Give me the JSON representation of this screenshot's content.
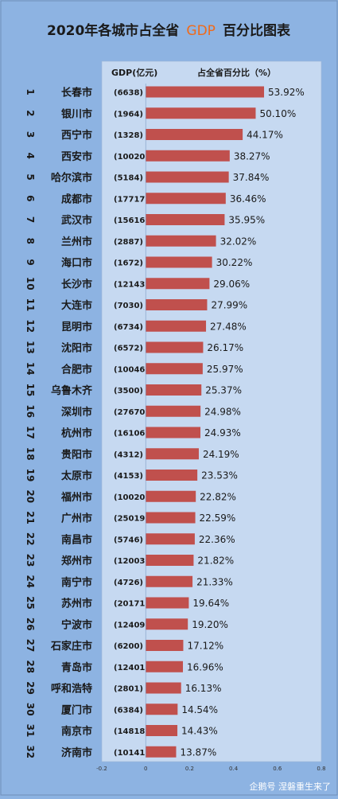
{
  "chart_data": {
    "type": "bar",
    "title_parts": [
      "2020年各城市占全省",
      "GDP",
      "百分比图表"
    ],
    "gdp_header": "GDP(亿元)",
    "pct_header": "占全省百分比（%）",
    "xlim": [
      -0.2,
      0.8
    ],
    "xticks": [
      "-0.2",
      "0",
      "0.2",
      "0.4",
      "0.6",
      "0.8"
    ],
    "bar_color": "#c0504d",
    "accent_color": "#f06a1a",
    "rows": [
      {
        "rank": "1",
        "city": "长春市",
        "gdp": "(6638)",
        "value": 0.5392,
        "label": "53.92%"
      },
      {
        "rank": "2",
        "city": "银川市",
        "gdp": "(1964)",
        "value": 0.501,
        "label": "50.10%"
      },
      {
        "rank": "3",
        "city": "西宁市",
        "gdp": "(1328)",
        "value": 0.4417,
        "label": "44.17%"
      },
      {
        "rank": "4",
        "city": "西安市",
        "gdp": "(10020)",
        "value": 0.3827,
        "label": "38.27%"
      },
      {
        "rank": "5",
        "city": "哈尔滨市",
        "gdp": "(5184)",
        "value": 0.3784,
        "label": "37.84%"
      },
      {
        "rank": "6",
        "city": "成都市",
        "gdp": "(17717)",
        "value": 0.3646,
        "label": "36.46%"
      },
      {
        "rank": "7",
        "city": "武汉市",
        "gdp": "(15616)",
        "value": 0.3595,
        "label": "35.95%"
      },
      {
        "rank": "8",
        "city": "兰州市",
        "gdp": "(2887)",
        "value": 0.3202,
        "label": "32.02%"
      },
      {
        "rank": "9",
        "city": "海口市",
        "gdp": "(1672)",
        "value": 0.3022,
        "label": "30.22%"
      },
      {
        "rank": "10",
        "city": "长沙市",
        "gdp": "(12143)",
        "value": 0.2906,
        "label": "29.06%"
      },
      {
        "rank": "11",
        "city": "大连市",
        "gdp": "(7030)",
        "value": 0.2799,
        "label": "27.99%"
      },
      {
        "rank": "12",
        "city": "昆明市",
        "gdp": "(6734)",
        "value": 0.2748,
        "label": "27.48%"
      },
      {
        "rank": "13",
        "city": "沈阳市",
        "gdp": "(6572)",
        "value": 0.2617,
        "label": "26.17%"
      },
      {
        "rank": "14",
        "city": "合肥市",
        "gdp": "(10046)",
        "value": 0.2597,
        "label": "25.97%"
      },
      {
        "rank": "15",
        "city": "乌鲁木齐",
        "gdp": "(3500)",
        "value": 0.2537,
        "label": "25.37%"
      },
      {
        "rank": "16",
        "city": "深圳市",
        "gdp": "(27670)",
        "value": 0.2498,
        "label": "24.98%"
      },
      {
        "rank": "17",
        "city": "杭州市",
        "gdp": "(16106)",
        "value": 0.2493,
        "label": "24.93%"
      },
      {
        "rank": "18",
        "city": "贵阳市",
        "gdp": "(4312)",
        "value": 0.2419,
        "label": "24.19%"
      },
      {
        "rank": "19",
        "city": "太原市",
        "gdp": "(4153)",
        "value": 0.2353,
        "label": "23.53%"
      },
      {
        "rank": "20",
        "city": "福州市",
        "gdp": "(10020)",
        "value": 0.2282,
        "label": "22.82%"
      },
      {
        "rank": "21",
        "city": "广州市",
        "gdp": "(25019)",
        "value": 0.2259,
        "label": "22.59%"
      },
      {
        "rank": "22",
        "city": "南昌市",
        "gdp": "(5746)",
        "value": 0.2236,
        "label": "22.36%"
      },
      {
        "rank": "23",
        "city": "郑州市",
        "gdp": "(12003)",
        "value": 0.2182,
        "label": "21.82%"
      },
      {
        "rank": "24",
        "city": "南宁市",
        "gdp": "(4726)",
        "value": 0.2133,
        "label": "21.33%"
      },
      {
        "rank": "25",
        "city": "苏州市",
        "gdp": "(20171)",
        "value": 0.1964,
        "label": "19.64%"
      },
      {
        "rank": "26",
        "city": "宁波市",
        "gdp": "(12409)",
        "value": 0.192,
        "label": "19.20%"
      },
      {
        "rank": "27",
        "city": "石家庄市",
        "gdp": "(6200)",
        "value": 0.1712,
        "label": "17.12%"
      },
      {
        "rank": "28",
        "city": "青岛市",
        "gdp": "(12401)",
        "value": 0.1696,
        "label": "16.96%"
      },
      {
        "rank": "29",
        "city": "呼和浩特",
        "gdp": "(2801)",
        "value": 0.1613,
        "label": "16.13%"
      },
      {
        "rank": "30",
        "city": "厦门市",
        "gdp": "(6384)",
        "value": 0.1454,
        "label": "14.54%"
      },
      {
        "rank": "31",
        "city": "南京市",
        "gdp": "(14818)",
        "value": 0.1443,
        "label": "14.43%"
      },
      {
        "rank": "32",
        "city": "济南市",
        "gdp": "(10141)",
        "value": 0.1387,
        "label": "13.87%"
      }
    ]
  },
  "watermark": "企鹅号 涅磐重生来了"
}
